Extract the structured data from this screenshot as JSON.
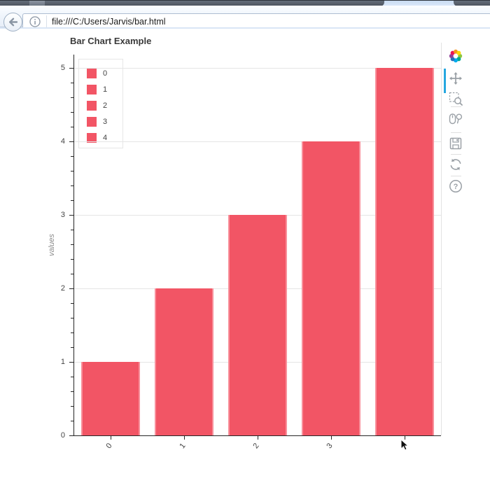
{
  "browser": {
    "url": "file:///C:/Users/Jarvis/bar.html",
    "back_button_icon": "back-arrow-icon",
    "page_info_icon": "info-circle-icon"
  },
  "chart_data": {
    "type": "bar",
    "title": "Bar Chart Example",
    "xlabel": "",
    "ylabel": "values",
    "categories": [
      "0",
      "1",
      "2",
      "3",
      "4"
    ],
    "values": [
      1,
      2,
      3,
      4,
      5
    ],
    "y_ticks": [
      0,
      1,
      2,
      3,
      4,
      5
    ],
    "minor_tick_step": 0.2,
    "ylim": [
      0,
      5.18
    ],
    "bar_width_fraction": 0.8,
    "bar_color": "#f25565",
    "bar_line_color": "#ffffff",
    "grid": "horizontal-only",
    "gridline_color": "#e5e5e5",
    "legend": {
      "position": "top_left",
      "items": [
        {
          "label": "0",
          "color": "#f25565"
        },
        {
          "label": "1",
          "color": "#f25565"
        },
        {
          "label": "2",
          "color": "#f25565"
        },
        {
          "label": "3",
          "color": "#f25565"
        },
        {
          "label": "4",
          "color": "#f25565"
        }
      ]
    }
  },
  "bokeh_toolbar": {
    "logo": "bokeh-logo",
    "active_tool": "pan",
    "active_indicator_color": "#26a7e0",
    "icon_color": "#9aa0a6",
    "help_glyph": "?",
    "tools": [
      {
        "name": "pan",
        "icon": "move-arrows-icon"
      },
      {
        "name": "box-zoom",
        "icon": "box-zoom-icon"
      },
      {
        "name": "wheel-zoom",
        "icon": "mouse-magnifier-icon"
      },
      {
        "name": "save",
        "icon": "floppy-disk-icon"
      },
      {
        "name": "reset",
        "icon": "circular-arrows-icon"
      },
      {
        "name": "help",
        "icon": "question-mark-icon"
      }
    ]
  }
}
